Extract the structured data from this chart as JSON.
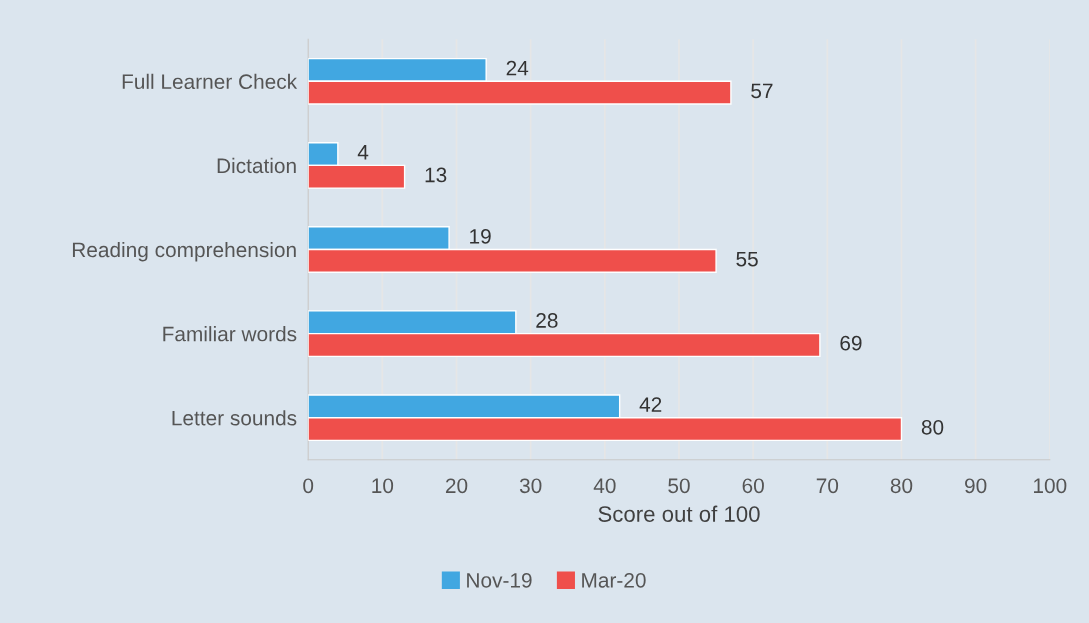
{
  "chart_data": {
    "type": "bar",
    "orientation": "horizontal",
    "xlabel": "Score out of 100",
    "categories": [
      "Full Learner Check",
      "Dictation",
      "Reading comprehension",
      "Familiar words",
      "Letter sounds"
    ],
    "series": [
      {
        "name": "Nov-19",
        "color": "#41a7e1",
        "values": [
          24,
          4,
          19,
          28,
          42
        ]
      },
      {
        "name": "Mar-20",
        "color": "#ef4f4b",
        "values": [
          57,
          13,
          55,
          69,
          80
        ]
      }
    ],
    "xlim": [
      0,
      100
    ],
    "xticks": [
      0,
      10,
      20,
      30,
      40,
      50,
      60,
      70,
      80,
      90,
      100
    ],
    "grid": "x",
    "legend": "bottom",
    "data_labels": true
  }
}
